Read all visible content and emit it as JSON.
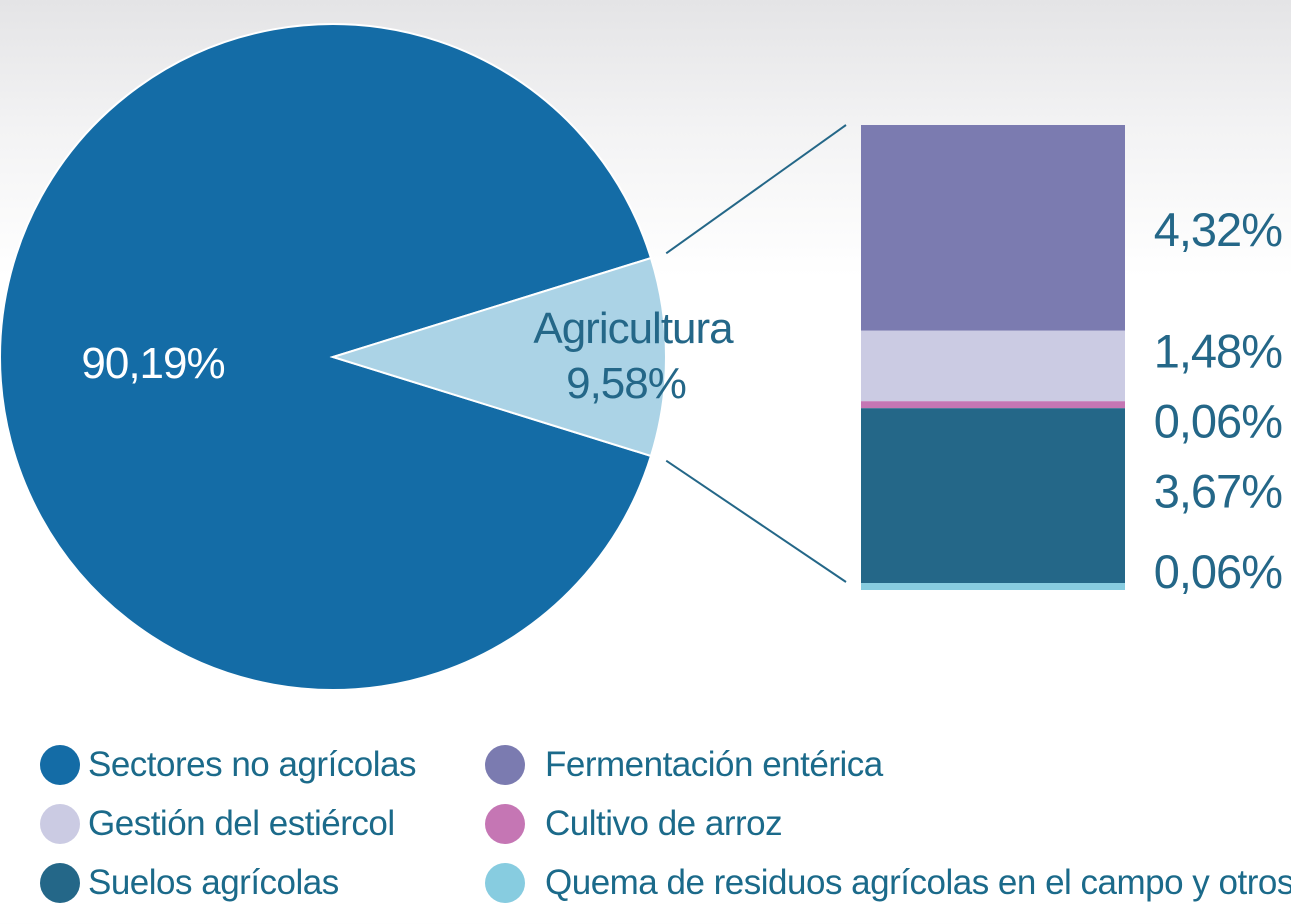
{
  "chart_data": {
    "type": "pie",
    "pie": {
      "slices": [
        {
          "name": "Sectores no agrícolas",
          "value": 90.19,
          "label": "90,19%",
          "color": "#146ca6"
        },
        {
          "name": "Agricultura",
          "value": 9.58,
          "label": "9,58%",
          "color": "#abd3e6"
        }
      ]
    },
    "breakdown": {
      "type": "bar",
      "stacked": true,
      "total_label": "9,58%",
      "segments": [
        {
          "name": "Fermentación entérica",
          "value": 4.32,
          "label": "4,32%",
          "color": "#7b7bb0"
        },
        {
          "name": "Gestión del estiércol",
          "value": 1.48,
          "label": "1,48%",
          "color": "#cbcbe3"
        },
        {
          "name": "Cultivo de arroz",
          "value": 0.06,
          "label": "0,06%",
          "color": "#c576b4"
        },
        {
          "name": "Suelos agrícolas",
          "value": 3.67,
          "label": "3,67%",
          "color": "#246788"
        },
        {
          "name": "Quema de residuos agrícolas en el campo y otros",
          "value": 0.06,
          "label": "0,06%",
          "color": "#87cce0"
        }
      ]
    },
    "legend": {
      "placement": "bottom",
      "columns": [
        [
          {
            "label": "Sectores no agrícolas",
            "color": "#146ca6"
          },
          {
            "label": "Gestión del estiércol",
            "color": "#cbcbe3"
          },
          {
            "label": "Suelos agrícolas",
            "color": "#246788"
          }
        ],
        [
          {
            "label": "Fermentación entérica",
            "color": "#7b7bb0"
          },
          {
            "label": "Cultivo de arroz",
            "color": "#c576b4"
          },
          {
            "label": "Quema de residuos agrícolas en el campo y otros",
            "color": "#87cce0"
          }
        ]
      ]
    }
  }
}
